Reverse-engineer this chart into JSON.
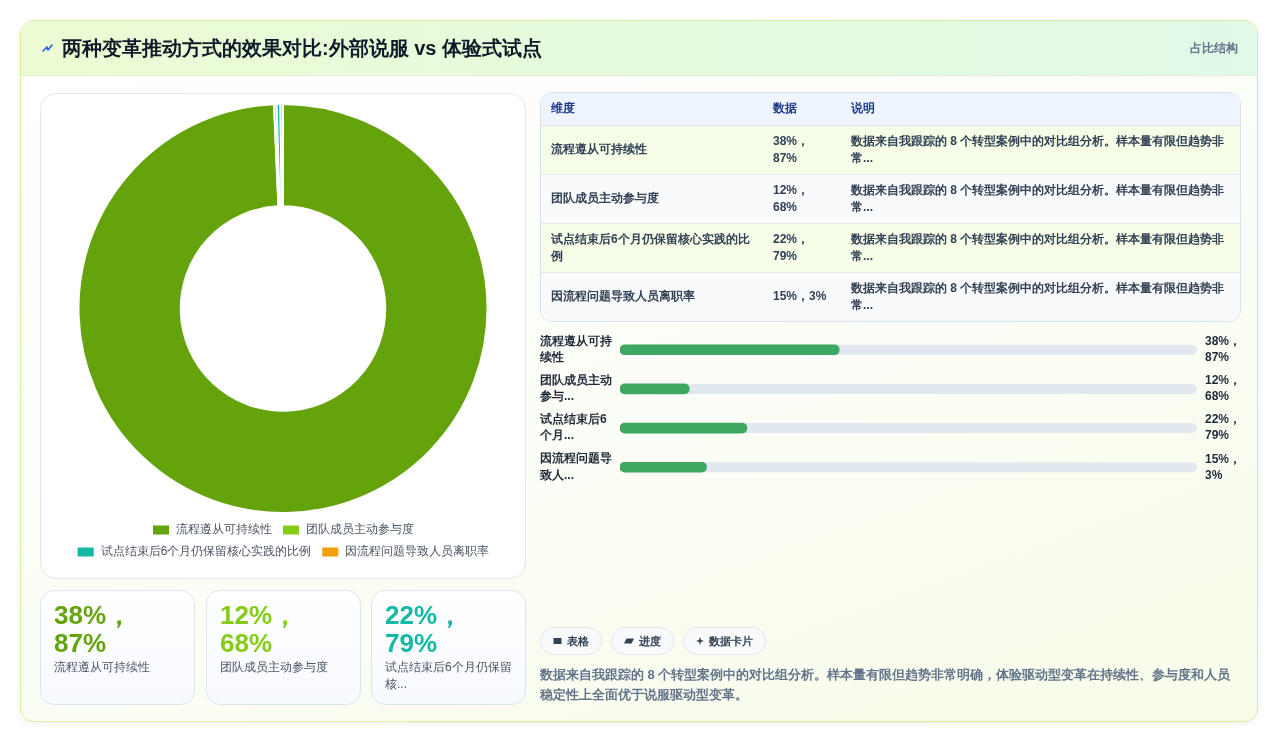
{
  "chart_data": [
    {
      "type": "other",
      "title": "两种变革推动方式的效果对比:外部说服 vs 体验式试点",
      "subtitle": "占比结构"
    },
    {
      "type": "donut",
      "categories": [
        "流程遵从可持续性",
        "团队成员主动参与度",
        "试点结束后6个月仍保留核心实践的比例",
        "因流程问题导致人员离职率"
      ],
      "values": [
        99.3,
        0.2,
        0.3,
        0.2
      ],
      "colors": [
        "#65a30d",
        "#84cc16",
        "#14b8a6",
        "#f59e0b"
      ],
      "legend": "bottom"
    },
    {
      "type": "other",
      "annotations": [
        "维度",
        "数据",
        "说明",
        "流程遵从可持续性",
        "38%，87%",
        "数据来自我跟踪的 8 个转型案例中的对比组分析。样本量有限但趋势非常...",
        "团队成员主动参与度",
        "12%，68%",
        "数据来自我跟踪的 8 个转型案例中的对比组分析。样本量有限但趋势非常...",
        "试点结束后6个月仍保留核心实践的比例",
        "22%，79%",
        "数据来自我跟踪的 8 个转型案例中的对比组分析。样本量有限但趋势非常...",
        "因流程问题导致人员离职率",
        "15%，3%",
        "数据来自我跟踪的 8 个转型案例中的对比组分析。样本量有限但趋势非常..."
      ]
    },
    {
      "type": "bar",
      "orientation": "horizontal",
      "categories": [
        "流程遵从可持续性",
        "团队成员主动参与...",
        "试点结束后6个月...",
        "因流程问题导致人..."
      ],
      "values": [
        38,
        12,
        22,
        15
      ],
      "value_labels": [
        "38%，87%",
        "12%，68%",
        "22%，79%",
        "15%，3%"
      ],
      "xlim": [
        0,
        100
      ],
      "tick_labels": "y",
      "color": "#3ea862"
    },
    {
      "type": "other",
      "annotations": [
        "38%，87%",
        "流程遵从可持续性",
        "12%，68%",
        "团队成员主动参与度",
        "22%，79%",
        "试点结束后6个月仍保留核..."
      ]
    },
    {
      "type": "other",
      "annotations": [
        "表格",
        "进度",
        "数据卡片",
        "数据来自我跟踪的 8 个转型案例中的对比组分析。样本量有限但趋势非常明确，体验驱动型变革在持续性、参与度和人员稳定性上全面优于说服驱动型变革。"
      ]
    }
  ]
}
